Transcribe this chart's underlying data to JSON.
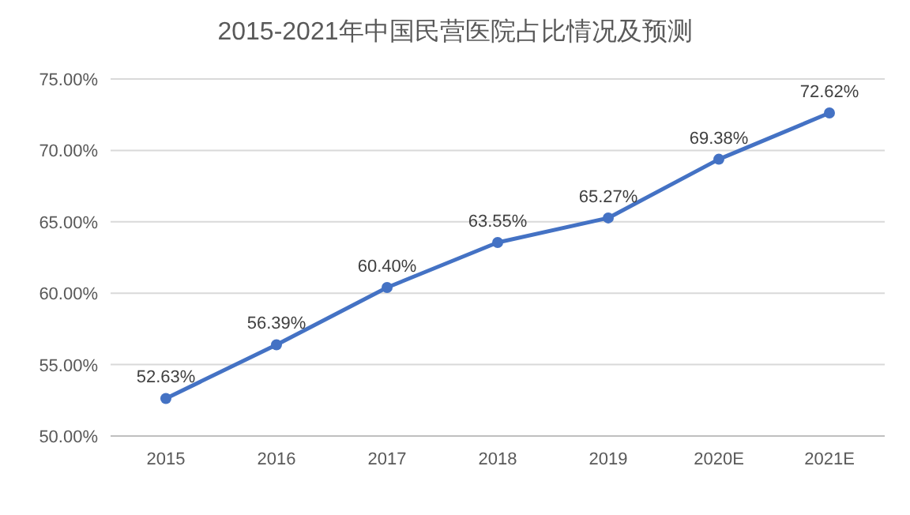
{
  "chart_data": {
    "type": "line",
    "title": "2015-2021年中国民营医院占比情况及预测",
    "categories": [
      "2015",
      "2016",
      "2017",
      "2018",
      "2019",
      "2020E",
      "2021E"
    ],
    "series": [
      {
        "color": "#4472c4",
        "values": [
          52.63,
          56.39,
          60.4,
          63.55,
          65.27,
          69.38,
          72.62
        ],
        "value_labels": [
          "52.63%",
          "56.39%",
          "60.40%",
          "63.55%",
          "65.27%",
          "69.38%",
          "72.62%"
        ]
      }
    ],
    "ylim": [
      50,
      75
    ],
    "yticks": [
      {
        "value": 50,
        "label": "50.00%"
      },
      {
        "value": 55,
        "label": "55.00%"
      },
      {
        "value": 60,
        "label": "60.00%"
      },
      {
        "value": 65,
        "label": "65.00%"
      },
      {
        "value": 70,
        "label": "70.00%"
      },
      {
        "value": 75,
        "label": "75.00%"
      }
    ],
    "grid": "y",
    "marker": "circle",
    "line_style": "solid"
  }
}
